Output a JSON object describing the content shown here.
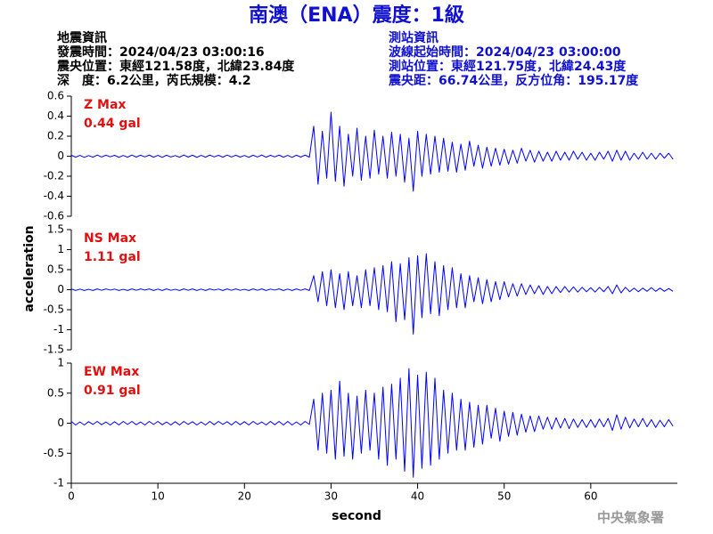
{
  "header": {
    "title": "南澳（ENA）震度：1級",
    "left": [
      "地震資訊",
      "發震時間：2024/04/23 03:00:16",
      "震央位置：東經121.58度，北緯23.84度",
      "深　度：6.2公里，芮氏規模：4.2"
    ],
    "right": [
      "測站資訊",
      "波線起始時間：2024/04/23 03:00:00",
      "測站位置：東經121.75度，北緯24.43度",
      "震央距：66.74公里，反方位角：195.17度"
    ]
  },
  "y_label": "acceleration",
  "x_label": "second",
  "footer": "中央氣象署",
  "chart_data": [
    {
      "type": "line",
      "label": "Z Max",
      "max_label": "0.44 gal",
      "color": "#0000ff",
      "xlim": [
        0,
        70
      ],
      "ylim": [
        -0.6,
        0.6
      ],
      "yticks": [
        -0.6,
        -0.4,
        -0.2,
        0,
        0.2,
        0.4,
        0.6
      ],
      "x": [
        0,
        0.5,
        1,
        1.5,
        2,
        2.5,
        3,
        3.5,
        4,
        4.5,
        5,
        5.5,
        6,
        6.5,
        7,
        7.5,
        8,
        8.5,
        9,
        9.5,
        10,
        10.5,
        11,
        11.5,
        12,
        12.5,
        13,
        13.5,
        14,
        14.5,
        15,
        15.5,
        16,
        16.5,
        17,
        17.5,
        18,
        18.5,
        19,
        19.5,
        20,
        20.5,
        21,
        21.5,
        22,
        22.5,
        23,
        23.5,
        24,
        24.5,
        25,
        25.5,
        26,
        26.5,
        27,
        27.5,
        28,
        28.5,
        29,
        29.5,
        30,
        30.5,
        31,
        31.5,
        32,
        32.5,
        33,
        33.5,
        34,
        34.5,
        35,
        35.5,
        36,
        36.5,
        37,
        37.5,
        38,
        38.5,
        39,
        39.5,
        40,
        40.5,
        41,
        41.5,
        42,
        42.5,
        43,
        43.5,
        44,
        44.5,
        45,
        45.5,
        46,
        46.5,
        47,
        47.5,
        48,
        48.5,
        49,
        49.5,
        50,
        50.5,
        51,
        51.5,
        52,
        52.5,
        53,
        53.5,
        54,
        54.5,
        55,
        55.5,
        56,
        56.5,
        57,
        57.5,
        58,
        58.5,
        59,
        59.5,
        60,
        60.5,
        61,
        61.5,
        62,
        62.5,
        63,
        63.5,
        64,
        64.5,
        65,
        65.5,
        66,
        66.5,
        67,
        67.5,
        68,
        68.5,
        69,
        69.5
      ],
      "values": [
        0.01,
        -0.01,
        0.008,
        -0.012,
        0.006,
        -0.01,
        0.012,
        -0.008,
        0.01,
        -0.006,
        0.009,
        -0.011,
        0.007,
        -0.01,
        0.012,
        -0.009,
        0.01,
        -0.007,
        0.011,
        -0.01,
        0.008,
        -0.012,
        0.01,
        -0.008,
        0.006,
        -0.01,
        0.012,
        -0.009,
        0.01,
        -0.011,
        0.008,
        -0.01,
        0.011,
        -0.007,
        0.009,
        -0.01,
        0.012,
        -0.008,
        0.01,
        -0.009,
        0.007,
        -0.011,
        0.01,
        -0.008,
        0.012,
        -0.01,
        0.009,
        -0.007,
        0.011,
        -0.01,
        0.008,
        -0.012,
        0.01,
        -0.009,
        0.011,
        -0.01,
        0.3,
        -0.28,
        0.25,
        -0.22,
        0.44,
        -0.25,
        0.3,
        -0.3,
        0.22,
        -0.2,
        0.28,
        -0.24,
        0.2,
        -0.22,
        0.26,
        -0.18,
        0.2,
        -0.22,
        0.24,
        -0.2,
        0.22,
        -0.26,
        0.18,
        -0.35,
        0.25,
        -0.2,
        0.22,
        -0.18,
        0.2,
        -0.16,
        0.18,
        -0.15,
        0.14,
        -0.16,
        0.12,
        -0.14,
        0.15,
        -0.1,
        0.11,
        -0.12,
        0.09,
        -0.1,
        0.08,
        -0.09,
        0.07,
        -0.08,
        0.06,
        -0.07,
        0.08,
        -0.05,
        0.06,
        -0.06,
        0.05,
        -0.05,
        0.04,
        -0.05,
        0.05,
        -0.04,
        0.04,
        -0.04,
        0.05,
        -0.03,
        0.04,
        -0.04,
        0.03,
        -0.04,
        0.04,
        -0.03,
        0.05,
        -0.05,
        0.06,
        -0.04,
        0.05,
        -0.04,
        0.03,
        -0.03,
        0.04,
        -0.03,
        0.03,
        -0.03,
        0.03,
        -0.02,
        0.03,
        -0.03
      ]
    },
    {
      "type": "line",
      "label": "NS Max",
      "max_label": "1.11 gal",
      "color": "#0000ff",
      "xlim": [
        0,
        70
      ],
      "ylim": [
        -1.5,
        1.5
      ],
      "yticks": [
        -1.5,
        -1,
        -0.5,
        0,
        0.5,
        1,
        1.5
      ],
      "x": [
        0,
        0.5,
        1,
        1.5,
        2,
        2.5,
        3,
        3.5,
        4,
        4.5,
        5,
        5.5,
        6,
        6.5,
        7,
        7.5,
        8,
        8.5,
        9,
        9.5,
        10,
        10.5,
        11,
        11.5,
        12,
        12.5,
        13,
        13.5,
        14,
        14.5,
        15,
        15.5,
        16,
        16.5,
        17,
        17.5,
        18,
        18.5,
        19,
        19.5,
        20,
        20.5,
        21,
        21.5,
        22,
        22.5,
        23,
        23.5,
        24,
        24.5,
        25,
        25.5,
        26,
        26.5,
        27,
        27.5,
        28,
        28.5,
        29,
        29.5,
        30,
        30.5,
        31,
        31.5,
        32,
        32.5,
        33,
        33.5,
        34,
        34.5,
        35,
        35.5,
        36,
        36.5,
        37,
        37.5,
        38,
        38.5,
        39,
        39.5,
        40,
        40.5,
        41,
        41.5,
        42,
        42.5,
        43,
        43.5,
        44,
        44.5,
        45,
        45.5,
        46,
        46.5,
        47,
        47.5,
        48,
        48.5,
        49,
        49.5,
        50,
        50.5,
        51,
        51.5,
        52,
        52.5,
        53,
        53.5,
        54,
        54.5,
        55,
        55.5,
        56,
        56.5,
        57,
        57.5,
        58,
        58.5,
        59,
        59.5,
        60,
        60.5,
        61,
        61.5,
        62,
        62.5,
        63,
        63.5,
        64,
        64.5,
        65,
        65.5,
        66,
        66.5,
        67,
        67.5,
        68,
        68.5,
        69,
        69.5
      ],
      "values": [
        0.02,
        -0.02,
        0.015,
        -0.02,
        0.01,
        -0.02,
        0.02,
        -0.015,
        0.02,
        -0.01,
        0.015,
        -0.02,
        0.01,
        -0.02,
        0.02,
        -0.015,
        0.02,
        -0.01,
        0.02,
        -0.02,
        0.015,
        -0.02,
        0.02,
        -0.015,
        0.01,
        -0.02,
        0.02,
        -0.015,
        0.02,
        -0.02,
        0.015,
        -0.02,
        0.02,
        -0.01,
        0.015,
        -0.02,
        0.02,
        -0.015,
        0.02,
        -0.015,
        0.01,
        -0.02,
        0.02,
        -0.015,
        0.02,
        -0.02,
        0.015,
        -0.01,
        0.02,
        -0.02,
        0.015,
        -0.02,
        0.02,
        -0.015,
        0.02,
        -0.02,
        0.35,
        -0.3,
        0.45,
        -0.4,
        0.5,
        -0.45,
        0.4,
        -0.5,
        0.45,
        -0.4,
        0.35,
        -0.45,
        0.5,
        -0.4,
        0.55,
        -0.5,
        0.6,
        -0.55,
        0.7,
        -0.8,
        0.65,
        -0.75,
        0.8,
        -1.11,
        0.85,
        -0.7,
        0.9,
        -0.6,
        0.7,
        -0.65,
        0.6,
        -0.5,
        0.55,
        -0.45,
        0.4,
        -0.45,
        0.35,
        -0.3,
        0.3,
        -0.35,
        0.25,
        -0.3,
        0.2,
        -0.25,
        0.2,
        -0.18,
        0.15,
        -0.16,
        0.15,
        -0.12,
        0.12,
        -0.1,
        0.1,
        -0.12,
        0.08,
        -0.1,
        0.08,
        -0.07,
        0.08,
        -0.06,
        0.07,
        -0.06,
        0.06,
        -0.05,
        0.05,
        -0.06,
        0.06,
        -0.05,
        0.08,
        -0.1,
        0.12,
        -0.08,
        0.06,
        -0.05,
        0.04,
        -0.05,
        0.04,
        -0.04,
        0.05,
        -0.04,
        0.04,
        -0.04,
        0.03,
        -0.04
      ]
    },
    {
      "type": "line",
      "label": "EW Max",
      "max_label": "0.91 gal",
      "color": "#0000ff",
      "xlim": [
        0,
        70
      ],
      "ylim": [
        -1,
        1
      ],
      "yticks": [
        -1,
        -0.5,
        0,
        0.5,
        1
      ],
      "xticks": [
        0,
        10,
        20,
        30,
        40,
        50,
        60
      ],
      "x": [
        0,
        0.5,
        1,
        1.5,
        2,
        2.5,
        3,
        3.5,
        4,
        4.5,
        5,
        5.5,
        6,
        6.5,
        7,
        7.5,
        8,
        8.5,
        9,
        9.5,
        10,
        10.5,
        11,
        11.5,
        12,
        12.5,
        13,
        13.5,
        14,
        14.5,
        15,
        15.5,
        16,
        16.5,
        17,
        17.5,
        18,
        18.5,
        19,
        19.5,
        20,
        20.5,
        21,
        21.5,
        22,
        22.5,
        23,
        23.5,
        24,
        24.5,
        25,
        25.5,
        26,
        26.5,
        27,
        27.5,
        28,
        28.5,
        29,
        29.5,
        30,
        30.5,
        31,
        31.5,
        32,
        32.5,
        33,
        33.5,
        34,
        34.5,
        35,
        35.5,
        36,
        36.5,
        37,
        37.5,
        38,
        38.5,
        39,
        39.5,
        40,
        40.5,
        41,
        41.5,
        42,
        42.5,
        43,
        43.5,
        44,
        44.5,
        45,
        45.5,
        46,
        46.5,
        47,
        47.5,
        48,
        48.5,
        49,
        49.5,
        50,
        50.5,
        51,
        51.5,
        52,
        52.5,
        53,
        53.5,
        54,
        54.5,
        55,
        55.5,
        56,
        56.5,
        57,
        57.5,
        58,
        58.5,
        59,
        59.5,
        60,
        60.5,
        61,
        61.5,
        62,
        62.5,
        63,
        63.5,
        64,
        64.5,
        65,
        65.5,
        66,
        66.5,
        67,
        67.5,
        68,
        68.5,
        69,
        69.5
      ],
      "values": [
        0.03,
        -0.03,
        0.02,
        -0.03,
        0.025,
        -0.02,
        0.03,
        -0.025,
        0.02,
        -0.03,
        0.025,
        -0.03,
        0.03,
        -0.02,
        0.03,
        -0.025,
        0.02,
        -0.03,
        0.03,
        -0.02,
        0.03,
        -0.025,
        0.02,
        -0.03,
        0.025,
        -0.03,
        0.03,
        -0.02,
        0.025,
        -0.03,
        0.02,
        -0.03,
        0.03,
        -0.025,
        0.03,
        -0.02,
        0.025,
        -0.03,
        0.03,
        -0.025,
        0.025,
        -0.03,
        0.03,
        -0.02,
        0.02,
        -0.03,
        0.03,
        -0.025,
        0.03,
        -0.03,
        0.03,
        -0.03,
        0.02,
        -0.03,
        0.03,
        -0.02,
        0.4,
        -0.45,
        0.5,
        -0.5,
        0.55,
        -0.6,
        0.7,
        -0.55,
        0.5,
        -0.6,
        0.45,
        -0.5,
        0.55,
        -0.45,
        0.5,
        -0.6,
        0.6,
        -0.7,
        0.65,
        -0.6,
        0.75,
        -0.8,
        0.91,
        -0.9,
        0.8,
        -0.75,
        0.85,
        -0.7,
        0.75,
        -0.6,
        0.55,
        -0.5,
        0.5,
        -0.45,
        0.4,
        -0.45,
        0.35,
        -0.4,
        0.3,
        -0.35,
        0.3,
        -0.25,
        0.25,
        -0.3,
        0.2,
        -0.22,
        0.18,
        -0.2,
        0.15,
        -0.15,
        0.12,
        -0.14,
        0.12,
        -0.1,
        0.1,
        -0.1,
        0.09,
        -0.08,
        0.08,
        -0.09,
        0.07,
        -0.07,
        0.06,
        -0.07,
        0.06,
        -0.07,
        0.07,
        -0.06,
        0.08,
        -0.12,
        0.14,
        -0.1,
        0.1,
        -0.08,
        0.07,
        -0.06,
        0.08,
        -0.06,
        0.06,
        -0.07,
        0.05,
        -0.06,
        0.06,
        -0.05
      ]
    }
  ]
}
